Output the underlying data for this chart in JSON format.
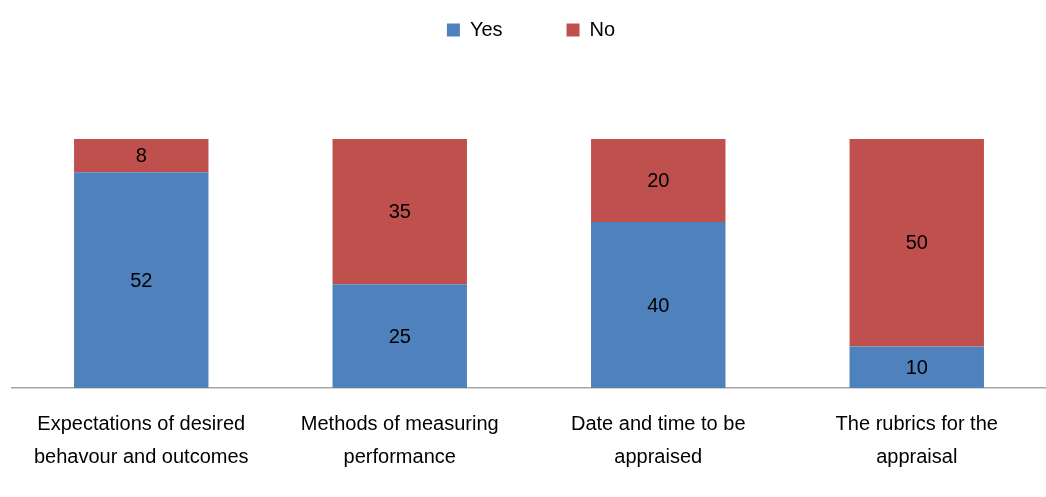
{
  "chart_data": {
    "type": "bar",
    "stacked": true,
    "categories": [
      "Expectations of desired behavour and outcomes",
      "Methods of measuring performance",
      "Date and time to be appraised",
      "The rubrics for the appraisal"
    ],
    "series": [
      {
        "name": "Yes",
        "color": "#4f81bd",
        "values": [
          52,
          25,
          40,
          10
        ]
      },
      {
        "name": "No",
        "color": "#c0504d",
        "values": [
          8,
          35,
          20,
          50
        ]
      }
    ],
    "legend": "top",
    "data_labels": true,
    "tick_labels": "x"
  }
}
